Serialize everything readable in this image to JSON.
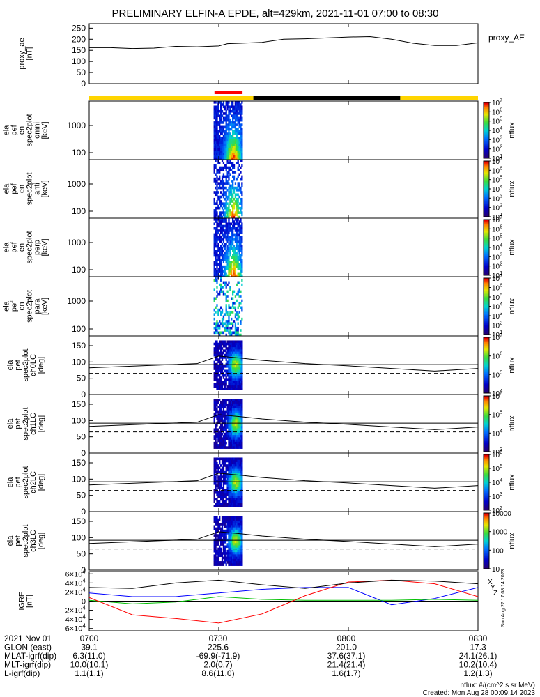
{
  "title": "PRELIMINARY ELFIN-A EPDE, alt=429km, 2021-11-01 07:00 to 08:30",
  "colors": {
    "bar_yellow": "#ffd500",
    "bar_black": "#000000",
    "bar_red": "#ff0000",
    "grf_x": "#0000ff",
    "grf_y": "#00c000",
    "grf_z": "#ff0000"
  },
  "chart_data": [
    {
      "type": "line",
      "ylabel_lines": [
        "proxy_ae",
        "[nT]"
      ],
      "legend": "proxy_AE",
      "ylim": [
        0,
        270
      ],
      "yticks": [
        "0",
        "50",
        "100",
        "150",
        "200",
        "250"
      ],
      "x_minutes": [
        0,
        5,
        10,
        15,
        20,
        25,
        30,
        32,
        35,
        40,
        45,
        50,
        55,
        60,
        65,
        70,
        75,
        80,
        85,
        90
      ],
      "values": [
        162,
        162,
        158,
        160,
        168,
        166,
        170,
        180,
        182,
        186,
        200,
        202,
        206,
        210,
        212,
        200,
        182,
        172,
        172,
        184
      ]
    },
    {
      "type": "heatmap",
      "ylabel_lines": [
        "ela",
        "pef",
        "en",
        "spec2plot",
        "omni",
        "[keV]"
      ],
      "yticks": [
        "100",
        "1000"
      ],
      "cbar": {
        "label": "nflux",
        "ticks": [
          "10^1",
          "10^2",
          "10^3",
          "10^4",
          "10^5",
          "10^6",
          "10^7"
        ]
      }
    },
    {
      "type": "heatmap",
      "ylabel_lines": [
        "ela",
        "pef",
        "en",
        "spec2plot",
        "anti",
        "[keV]"
      ],
      "yticks": [
        "100",
        "1000"
      ],
      "cbar": {
        "label": "nflux",
        "ticks": [
          "10^1",
          "10^2",
          "10^3",
          "10^4",
          "10^5",
          "10^6",
          "10^7"
        ]
      }
    },
    {
      "type": "heatmap",
      "ylabel_lines": [
        "ela",
        "pef",
        "en",
        "spec2plot",
        "perp",
        "[keV]"
      ],
      "yticks": [
        "100",
        "1000"
      ],
      "cbar": {
        "label": "nflux",
        "ticks": [
          "10^1",
          "10^2",
          "10^3",
          "10^4",
          "10^5",
          "10^6",
          "10^7"
        ]
      }
    },
    {
      "type": "heatmap",
      "ylabel_lines": [
        "ela",
        "pef",
        "en",
        "spec2plot",
        "para",
        "[keV]"
      ],
      "yticks": [
        "100",
        "1000"
      ],
      "cbar": {
        "label": "nflux",
        "ticks": [
          "10^1",
          "10^2",
          "10^3",
          "10^4",
          "10^5",
          "10^6",
          "10^7"
        ]
      }
    },
    {
      "type": "heatmap",
      "ylabel_lines": [
        "ela",
        "pef",
        "spec2plot",
        "ch0LC",
        "[deg]"
      ],
      "yticks": [
        "0",
        "50",
        "100",
        "150"
      ],
      "ylim": [
        0,
        180
      ],
      "cbar": {
        "label": "nflux",
        "ticks": [
          "10^4",
          "10^5",
          "10^6",
          "10^7"
        ]
      }
    },
    {
      "type": "heatmap",
      "ylabel_lines": [
        "ela",
        "pef",
        "spec2plot",
        "ch1LC",
        "[deg]"
      ],
      "yticks": [
        "0",
        "50",
        "100",
        "150"
      ],
      "ylim": [
        0,
        180
      ],
      "cbar": {
        "label": "nflux",
        "ticks": [
          "10^3",
          "10^4",
          "10^5",
          "10^6"
        ]
      }
    },
    {
      "type": "heatmap",
      "ylabel_lines": [
        "ela",
        "pef",
        "spec2plot",
        "ch2LC",
        "[deg]"
      ],
      "yticks": [
        "0",
        "50",
        "100",
        "150"
      ],
      "ylim": [
        0,
        180
      ],
      "cbar": {
        "label": "nflux",
        "ticks": [
          "10^2",
          "10^3",
          "10^4",
          "10^5",
          "10^6"
        ]
      }
    },
    {
      "type": "heatmap",
      "ylabel_lines": [
        "ela",
        "pef",
        "spec2plot",
        "ch3LC",
        "[deg]"
      ],
      "yticks": [
        "0",
        "50",
        "100",
        "150"
      ],
      "ylim": [
        0,
        180
      ],
      "cbar": {
        "label": "nflux",
        "ticks": [
          "10",
          "100",
          "1000",
          "10000"
        ]
      }
    },
    {
      "type": "line",
      "ylabel_lines": [
        "IGRF",
        "[nT]"
      ],
      "ylim": [
        -65000,
        65000
      ],
      "yticks": [
        "-6×10^4",
        "-4×10^4",
        "-2×10^4",
        "0",
        "2×10^4",
        "4×10^4",
        "6×10^4"
      ],
      "x_minutes": [
        0,
        10,
        20,
        30,
        40,
        50,
        60,
        70,
        80,
        90
      ],
      "series": [
        {
          "name": "x",
          "values": [
            18000,
            10000,
            10000,
            18000,
            26000,
            30000,
            30000,
            -8000,
            6000,
            30000
          ]
        },
        {
          "name": "y",
          "values": [
            2000,
            -6000,
            -2000,
            10000,
            4000,
            2000,
            2000,
            2000,
            4000,
            2000
          ]
        },
        {
          "name": "z",
          "values": [
            8000,
            -30000,
            -38000,
            -48000,
            -28000,
            12000,
            42000,
            46000,
            38000,
            10000
          ]
        },
        {
          "name": "",
          "values": [
            30000,
            28000,
            40000,
            46000,
            36000,
            28000,
            40000,
            46000,
            44000,
            38000
          ]
        }
      ],
      "legend": [
        "X",
        "Y",
        "Z"
      ]
    }
  ],
  "orbit_lines": {
    "ticks_x_minutes": [
      0,
      30,
      60,
      90
    ],
    "solid_deg_x": [
      0,
      25,
      30,
      35,
      40,
      50,
      60,
      70,
      80,
      90
    ],
    "solid_deg_y": [
      82,
      95,
      118,
      112,
      105,
      95,
      88,
      80,
      72,
      80
    ],
    "dashed_deg_y": 65,
    "flat_deg_y": 92
  },
  "footer": {
    "rows": [
      {
        "label": "2021 Nov 01",
        "vals": [
          "0700",
          "0730",
          "0800",
          "0830"
        ]
      },
      {
        "label": "GLON (east)",
        "vals": [
          "39.1",
          "225.6",
          "201.0",
          "17.3"
        ]
      },
      {
        "label": "MLAT-igrf(dip)",
        "vals": [
          "6.3(11.0)",
          "-69.9(-71.9)",
          "37.6(37.1)",
          "24.1(26.1)"
        ]
      },
      {
        "label": "MLT-igrf(dip)",
        "vals": [
          "10.0(10.1)",
          "2.0(0.7)",
          "21.4(21.4)",
          "10.2(10.4)"
        ]
      },
      {
        "label": "L-igrf(dip)",
        "vals": [
          "1.1(1.1)",
          "8.6(11.0)",
          "1.6(1.7)",
          "1.2(1.3)"
        ]
      }
    ],
    "units": "nflux: #/(cm^2 s sr MeV)",
    "created": "Created: Mon Aug 28 00:09:14 2023",
    "side_stamp": "Sun Aug 27 17:08:14 2023"
  }
}
